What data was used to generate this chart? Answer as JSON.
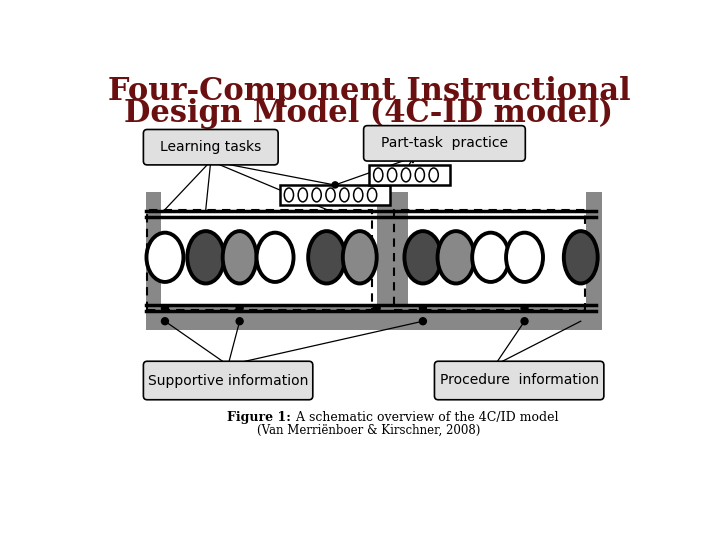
{
  "title_line1": "Four-Component Instructional",
  "title_line2": "Design Model (4C-ID model)",
  "title_color": "#6b1010",
  "title_fontsize": 22,
  "label_learning_tasks": "Learning tasks",
  "label_supportive": "Supportive information",
  "label_procedure": "Procedure  information",
  "label_part_task": "Part-task  practice",
  "figure_caption_bold": "Figure 1:",
  "figure_caption_rest": " A schematic overview of the 4C/ID model",
  "figure_subcaption": "(Van Merriënboer & Kirschner, 2008)",
  "bg_color": "#ffffff",
  "box_bg": "#e0e0e0",
  "gray_dark": "#4a4a4a",
  "gray_mid": "#888888",
  "gray_light": "#aaaaaa",
  "gray_structure": "#888888",
  "gray_base": "#b0b0b0"
}
